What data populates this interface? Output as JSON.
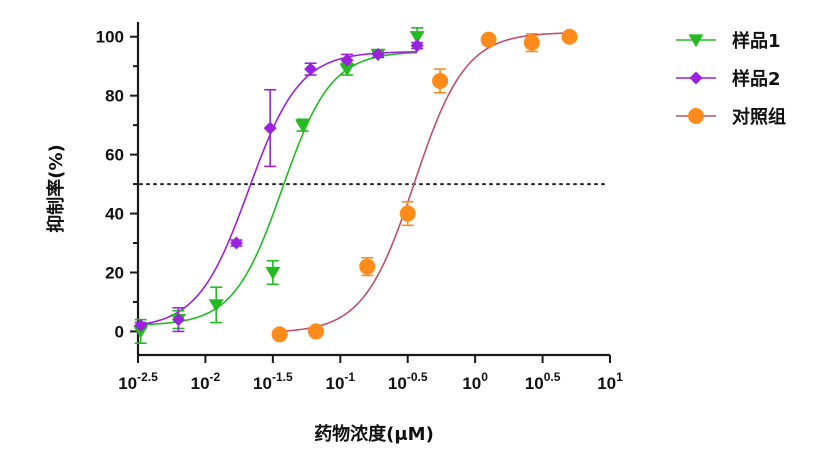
{
  "chart_data": {
    "type": "scatter",
    "title": "",
    "xlabel": "药物浓度(μM)",
    "ylabel": "抑制率(%)",
    "x_scale": "log10",
    "xlim": [
      -2.5,
      1
    ],
    "ylim": [
      -8,
      105
    ],
    "x_ticks": [
      {
        "base": "10",
        "exp": "-2.5",
        "value": -2.5
      },
      {
        "base": "10",
        "exp": "-2",
        "value": -2
      },
      {
        "base": "10",
        "exp": "-1.5",
        "value": -1.5
      },
      {
        "base": "10",
        "exp": "-1",
        "value": -1
      },
      {
        "base": "10",
        "exp": "-0.5",
        "value": -0.5
      },
      {
        "base": "10",
        "exp": "0",
        "value": 0
      },
      {
        "base": "10",
        "exp": "0.5",
        "value": 0.5
      },
      {
        "base": "10",
        "exp": "1",
        "value": 1
      }
    ],
    "y_ticks": [
      "0",
      "20",
      "40",
      "60",
      "80",
      "100"
    ],
    "reference_line_y": 50,
    "legend_position": "right",
    "series": [
      {
        "name": "样品1",
        "marker": "triangle-down",
        "color": "#22bb22",
        "points": [
          {
            "logx": -2.48,
            "y": 0,
            "err": 4
          },
          {
            "logx": -2.2,
            "y": 4,
            "err": 3
          },
          {
            "logx": -1.92,
            "y": 9,
            "err": 6
          },
          {
            "logx": -1.5,
            "y": 20,
            "err": 4
          },
          {
            "logx": -1.28,
            "y": 70,
            "err": 2
          },
          {
            "logx": -0.95,
            "y": 89,
            "err": 2
          },
          {
            "logx": -0.72,
            "y": 94,
            "err": 1
          },
          {
            "logx": -0.43,
            "y": 100,
            "err": 3
          }
        ],
        "fit": {
          "bottom": 2,
          "top": 95,
          "logEC50": -1.43,
          "hill": 2.4
        }
      },
      {
        "name": "样品2",
        "marker": "diamond",
        "color": "#9b22dd",
        "points": [
          {
            "logx": -2.48,
            "y": 2,
            "err": 1
          },
          {
            "logx": -2.2,
            "y": 4,
            "err": 4
          },
          {
            "logx": -1.77,
            "y": 30,
            "err": 1
          },
          {
            "logx": -1.52,
            "y": 69,
            "err": 13
          },
          {
            "logx": -1.22,
            "y": 89,
            "err": 2
          },
          {
            "logx": -0.95,
            "y": 92,
            "err": 2
          },
          {
            "logx": -0.72,
            "y": 94,
            "err": 1
          },
          {
            "logx": -0.43,
            "y": 97,
            "err": 1
          }
        ],
        "fit": {
          "bottom": 1,
          "top": 95,
          "logEC50": -1.68,
          "hill": 2.3
        }
      },
      {
        "name": "对照组",
        "marker": "circle",
        "color": "#ff8c1a",
        "line_color": "#c0506a",
        "points": [
          {
            "logx": -1.45,
            "y": -1,
            "err": 1
          },
          {
            "logx": -1.18,
            "y": 0,
            "err": 1
          },
          {
            "logx": -0.8,
            "y": 22,
            "err": 3
          },
          {
            "logx": -0.5,
            "y": 40,
            "err": 4
          },
          {
            "logx": -0.26,
            "y": 85,
            "err": 4
          },
          {
            "logx": 0.1,
            "y": 99,
            "err": 1
          },
          {
            "logx": 0.42,
            "y": 98,
            "err": 3
          },
          {
            "logx": 0.7,
            "y": 100,
            "err": 1
          }
        ],
        "fit": {
          "bottom": -0.5,
          "top": 101.5,
          "logEC50": -0.45,
          "hill": 2.3
        }
      }
    ]
  }
}
